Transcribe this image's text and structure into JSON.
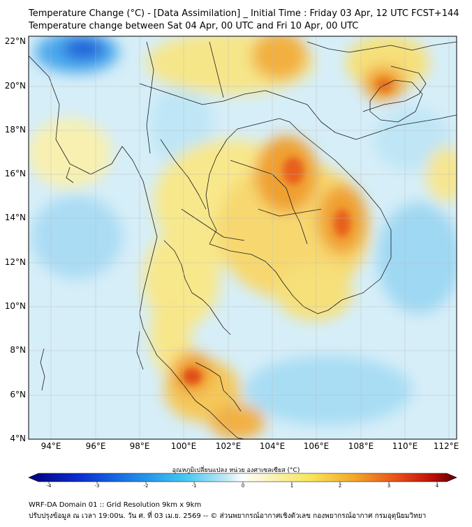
{
  "title_line1": "Temperature Change (°C) - [Data Assimilation] _ Initial Time : Friday 03 Apr, 12 UTC FCST+144",
  "title_line2": "Temperature change between Sat 04 Apr, 00 UTC and Fri 10 Apr, 00 UTC",
  "lat_labels": [
    "22°N",
    "20°N",
    "18°N",
    "16°N",
    "14°N",
    "12°N",
    "10°N",
    "8°N",
    "6°N",
    "4°N"
  ],
  "lon_labels": [
    "94°E",
    "96°E",
    "98°E",
    "100°E",
    "102°E",
    "104°E",
    "106°E",
    "108°E",
    "110°E",
    "112°E"
  ],
  "colorbar": {
    "label": "อุณหภูมิเปลี่ยนแปลง หน่วย องศาเซลเซียส (°C)",
    "ticks": [
      "-4",
      "-3",
      "-2",
      "-1",
      "0",
      "1",
      "2",
      "3",
      "4"
    ],
    "colors": {
      "cold": "#000080",
      "blue": "#0a4fd6",
      "cyan": "#3ec6f0",
      "pale": "#e8f6fb",
      "white": "#ffffff",
      "yellow": "#f8ec7a",
      "orange": "#f2a02a",
      "red": "#e02010",
      "dark": "#6a0000"
    }
  },
  "footer_line1": "WRF-DA Domain 01 :: Grid Resolution 9km x 9km",
  "footer_line2": "ปรับปรุงข้อมูล ณ เวลา 19:00น. วัน ศ. ที่ 03 เม.ย. 2569 -- © ส่วนพยากรณ์อากาศเชิงตัวเลข กองพยากรณ์อากาศ กรมอุตุนิยมวิทยา"
}
